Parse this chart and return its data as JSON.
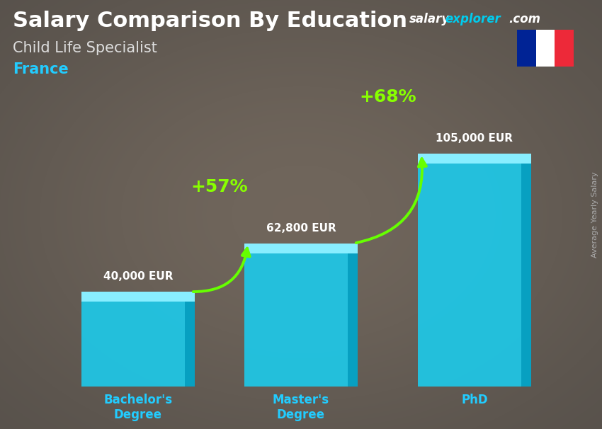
{
  "title": "Salary Comparison By Education",
  "subtitle": "Child Life Specialist",
  "country": "France",
  "categories": [
    "Bachelor's\nDegree",
    "Master's\nDegree",
    "PhD"
  ],
  "values": [
    40000,
    62800,
    105000
  ],
  "value_labels": [
    "40,000 EUR",
    "62,800 EUR",
    "105,000 EUR"
  ],
  "pct_labels": [
    "+57%",
    "+68%"
  ],
  "bar_color": "#1ec8e8",
  "bar_color_light": "#55ddff",
  "bar_color_dark": "#0099bb",
  "bar_top_color": "#88eeff",
  "ylim": [
    0,
    130000
  ],
  "ylabel": "Average Yearly Salary",
  "website_salary": "salary",
  "website_explorer": "explorer",
  "website_com": ".com",
  "website_color_white": "#ffffff",
  "website_color_cyan": "#00ccee",
  "arrow_color": "#66ff00",
  "pct_color": "#88ff00",
  "title_color": "#ffffff",
  "subtitle_color": "#dddddd",
  "country_color": "#22ccff",
  "xlabel_color": "#22ccff",
  "value_label_color": "#ffffff",
  "france_flag_blue": "#002395",
  "france_flag_white": "#ffffff",
  "france_flag_red": "#ED2939",
  "bg_colors": [
    "#4a5060",
    "#5a6070",
    "#6a7080",
    "#787878",
    "#686868",
    "#585858",
    "#4a4a4a"
  ],
  "ylabel_color": "#aaaaaa"
}
